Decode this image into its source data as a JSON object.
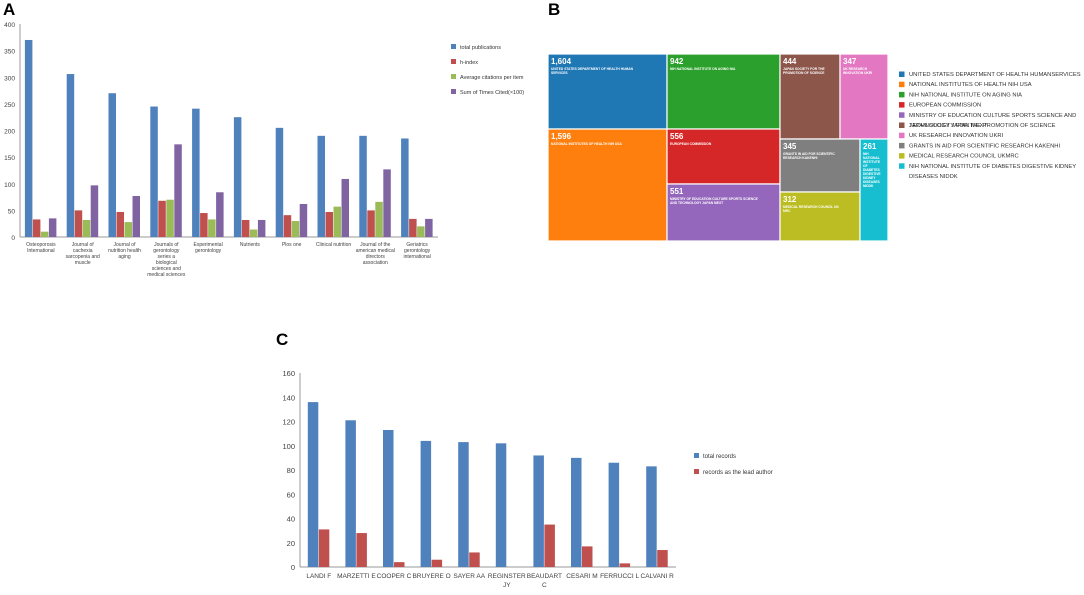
{
  "panels": {
    "a": "A",
    "b": "B",
    "c": "C"
  },
  "chart_data": [
    {
      "id": "A",
      "type": "bar",
      "title": "",
      "xlabel": "",
      "ylabel": "",
      "ylim": [
        0,
        400
      ],
      "yticks": [
        0,
        50,
        100,
        150,
        200,
        250,
        300,
        350,
        400
      ],
      "grid": false,
      "legend_position": "right",
      "categories": [
        [
          "Osteoporosis",
          "International"
        ],
        [
          "Journal of",
          "cachexia",
          "sarcopenia and",
          "muscle"
        ],
        [
          "Journal of",
          "nutrition health",
          "aging"
        ],
        [
          "Journals of",
          "gerontology",
          "series a",
          "biological",
          "sciences and",
          "medical sciences"
        ],
        [
          "Experimental",
          "gerontology"
        ],
        [
          "Nutrients"
        ],
        [
          "Plos one"
        ],
        [
          "Clinical nutrition"
        ],
        [
          "Journal of the",
          "american medical",
          "directors",
          "association"
        ],
        [
          "Geriatrics",
          "gerontology",
          "international"
        ]
      ],
      "series": [
        {
          "name": "total publications",
          "color": "#4f81bd",
          "values": [
            370,
            306,
            270,
            245,
            241,
            225,
            205,
            190,
            190,
            185
          ]
        },
        {
          "name": "h-index",
          "color": "#c0504d",
          "values": [
            33,
            50,
            47,
            68,
            45,
            32,
            41,
            47,
            50,
            34
          ]
        },
        {
          "name": "Average citations per item",
          "color": "#9bbb59",
          "values": [
            10,
            32,
            28,
            70,
            33,
            14,
            30,
            57,
            66,
            20
          ]
        },
        {
          "name": "Sum of Times Cited(×100)",
          "color": "#8064a2",
          "values": [
            35,
            97,
            77,
            174,
            84,
            32,
            62,
            109,
            127,
            34
          ]
        }
      ]
    },
    {
      "id": "B",
      "type": "treemap",
      "title": "",
      "items": [
        {
          "name": "UNITED STATES DEPARTMENT OF HEALTH HUMAN SERVICES",
          "value": 1604,
          "color": "#1f77b4",
          "legend": "UNITED STATES DEPARTMENT OF HEALTH HUMANSERVICES"
        },
        {
          "name": "NATIONAL INSTITUTES OF HEALTH NIH USA",
          "value": 1596,
          "color": "#ff7f0e",
          "legend": "NATIONAL INSTITUTES OF HEALTH NIH USA"
        },
        {
          "name": "NIH NATIONAL INSTITUTE ON AGING NIA",
          "value": 942,
          "color": "#2ca02c",
          "legend": "NIH NATIONAL INSTITUTE ON AGING NIA"
        },
        {
          "name": "EUROPEAN COMMISSION",
          "value": 556,
          "color": "#d62728",
          "legend": "EUROPEAN COMMISSION"
        },
        {
          "name": "MINISTRY OF EDUCATION CULTURE SPORTS SCIENCE AND TECHNOLOGY JAPAN MEXT",
          "value": 551,
          "color": "#9467bd",
          "legend": "MINISTRY OF EDUCATION CULTURE SPORTS SCIENCE AND TECHNOLOGY JAPAN MEXT"
        },
        {
          "name": "JAPAN SOCIETY FOR THE PROMOTION OF SCIENCE",
          "value": 444,
          "color": "#8c564b",
          "legend": "JAPAN SOCIETY FOR THE PROMOTION OF SCIENCE"
        },
        {
          "name": "UK RESEARCH INNOVATION UKRI",
          "value": 347,
          "color": "#e377c2",
          "legend": "UK RESEARCH INNOVATION UKRI"
        },
        {
          "name": "GRANTS IN AID FOR SCIENTIFIC RESEARCH KAKENHI",
          "value": 345,
          "color": "#7f7f7f",
          "legend": "GRANTS IN AID FOR SCIENTIFIC RESEARCH KAKENHI"
        },
        {
          "name": "MEDICAL RESEARCH COUNCIL UK MRC",
          "value": 312,
          "color": "#bcbd22",
          "legend": "MEDICAL RESEARCH COUNCIL UKMRC"
        },
        {
          "name": "NIH NATIONAL INSTITUTE OF DIABETES DIGESTIVE KIDNEY DISEASES NIDDK",
          "value": 261,
          "color": "#17becf",
          "legend": "NIH NATIONAL INSTITUTE OF  DIABETES DIGESTIVE KIDNEY DISEASES NIDDK"
        }
      ]
    },
    {
      "id": "C",
      "type": "bar",
      "title": "",
      "xlabel": "",
      "ylabel": "",
      "ylim": [
        0,
        160
      ],
      "yticks": [
        0,
        20,
        40,
        60,
        80,
        100,
        120,
        140,
        160
      ],
      "grid": false,
      "legend_position": "right",
      "categories": [
        [
          "LANDI F"
        ],
        [
          "MARZETTI E"
        ],
        [
          "COOPER C"
        ],
        [
          "BRUYERE O"
        ],
        [
          "SAYER AA"
        ],
        [
          "REGINSTER",
          "JY"
        ],
        [
          "BEAUDART",
          "C"
        ],
        [
          "CESARI M"
        ],
        [
          "FERRUCCI L"
        ],
        [
          "CALVANI R"
        ]
      ],
      "series": [
        {
          "name": "total records",
          "color": "#4f81bd",
          "values": [
            136,
            121,
            113,
            104,
            103,
            102,
            92,
            90,
            86,
            83
          ]
        },
        {
          "name": "records as the lead author",
          "color": "#c0504d",
          "values": [
            31,
            28,
            4,
            6,
            12,
            0,
            35,
            17,
            3,
            14
          ]
        }
      ]
    }
  ]
}
